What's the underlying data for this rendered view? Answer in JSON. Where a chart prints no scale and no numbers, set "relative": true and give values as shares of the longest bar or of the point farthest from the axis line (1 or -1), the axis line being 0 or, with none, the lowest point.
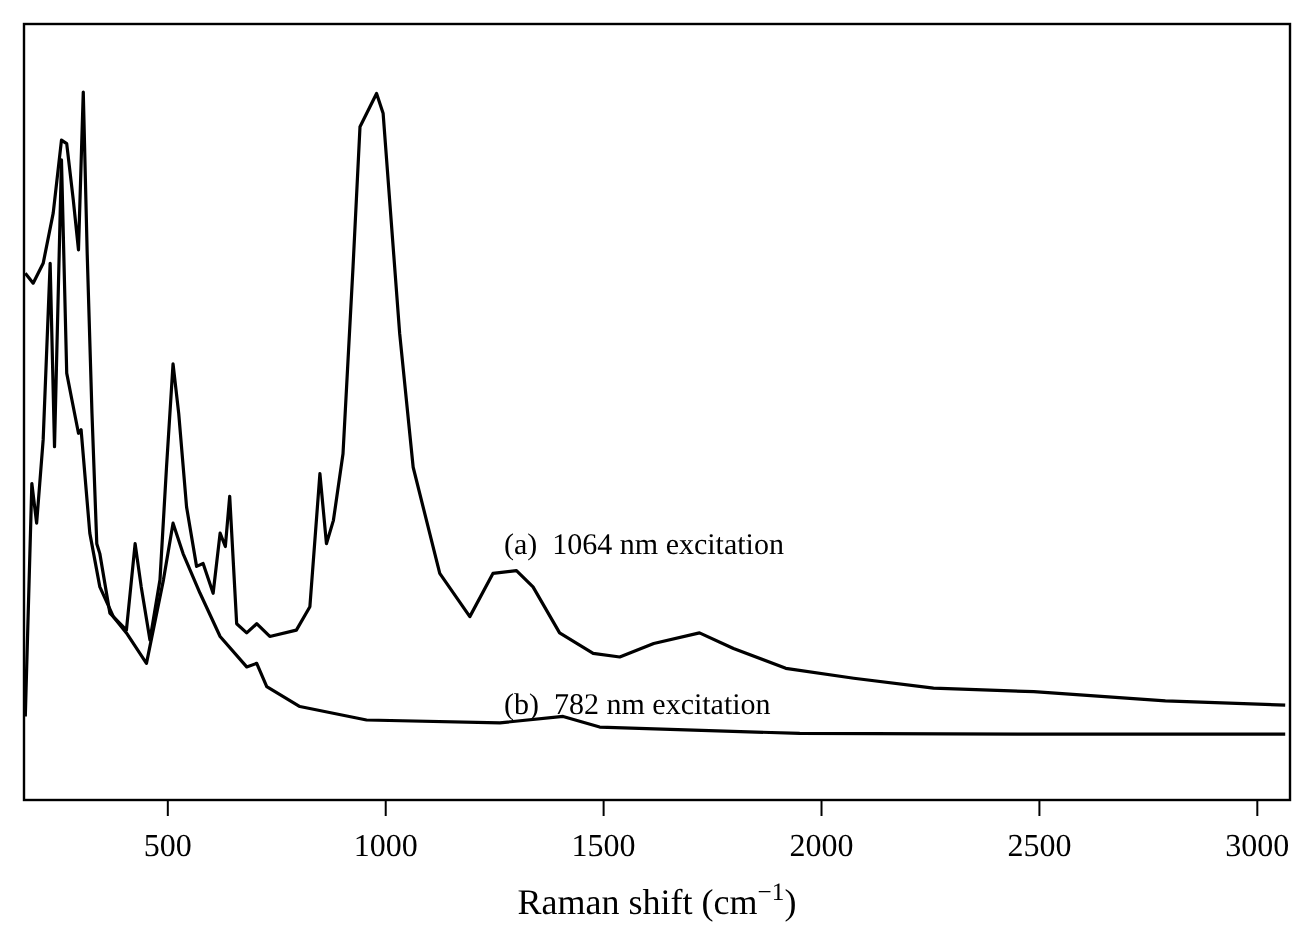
{
  "chart_data": {
    "type": "line",
    "relative": true,
    "xlabel": "Raman shift (cm$^{−1}$)",
    "xlim": [
      170,
      3075
    ],
    "xticks": [
      500,
      1000,
      1500,
      2000,
      2500,
      3000
    ],
    "grid": false,
    "legend": false,
    "marker": "none",
    "line_style": "solid",
    "series": [
      {
        "name": "(a)  1064 nm excitation",
        "color": "#000000",
        "x": [
          173,
          191,
          214,
          237,
          256,
          268,
          283,
          295,
          306,
          315,
          326,
          337,
          344,
          367,
          405,
          425,
          439,
          459,
          482,
          497,
          512,
          525,
          543,
          566,
          581,
          604,
          620,
          632,
          642,
          658,
          681,
          704,
          734,
          795,
          826,
          849,
          864,
          880,
          902,
          925,
          941,
          979,
          994,
          1032,
          1063,
          1124,
          1193,
          1246,
          1300,
          1338,
          1399,
          1476,
          1537,
          1615,
          1720,
          1798,
          1918,
          2074,
          2257,
          2487,
          2789,
          3064
        ],
        "values": [
          0.744,
          0.73,
          0.758,
          0.829,
          0.932,
          0.927,
          0.848,
          0.777,
          1.0,
          0.772,
          0.546,
          0.362,
          0.348,
          0.264,
          0.24,
          0.362,
          0.301,
          0.226,
          0.311,
          0.47,
          0.616,
          0.546,
          0.414,
          0.33,
          0.334,
          0.292,
          0.377,
          0.358,
          0.429,
          0.249,
          0.236,
          0.249,
          0.231,
          0.24,
          0.273,
          0.461,
          0.362,
          0.395,
          0.489,
          0.753,
          0.951,
          0.998,
          0.97,
          0.659,
          0.47,
          0.32,
          0.259,
          0.32,
          0.324,
          0.301,
          0.236,
          0.207,
          0.202,
          0.221,
          0.236,
          0.214,
          0.186,
          0.172,
          0.158,
          0.153,
          0.14,
          0.134
        ]
      },
      {
        "name": "(b)  782 nm excitation",
        "color": "#000000",
        "x": [
          173,
          188,
          199,
          214,
          230,
          240,
          256,
          268,
          280,
          295,
          301,
          321,
          344,
          375,
          405,
          451,
          490,
          512,
          535,
          574,
          620,
          681,
          704,
          727,
          803,
          956,
          1262,
          1407,
          1491,
          1950,
          2500,
          3064
        ],
        "values": [
          0.118,
          0.447,
          0.391,
          0.509,
          0.758,
          0.499,
          0.904,
          0.603,
          0.565,
          0.518,
          0.523,
          0.377,
          0.301,
          0.259,
          0.236,
          0.193,
          0.311,
          0.391,
          0.348,
          0.292,
          0.231,
          0.188,
          0.193,
          0.16,
          0.132,
          0.113,
          0.109,
          0.118,
          0.103,
          0.094,
          0.093,
          0.093
        ]
      }
    ]
  }
}
